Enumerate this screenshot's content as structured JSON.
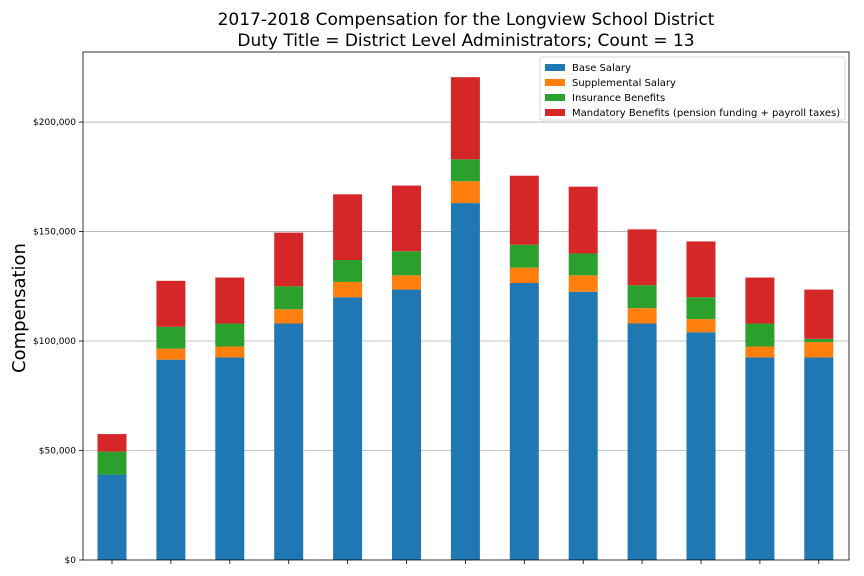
{
  "chart_data": {
    "type": "bar",
    "stacked": true,
    "title": [
      "2017-2018 Compensation for the Longview School District",
      "Duty Title = District Level Administrators; Count = 13"
    ],
    "xlabel": "",
    "ylabel": "Compensation",
    "ylim": [
      0,
      232000
    ],
    "yticks": [
      0,
      50000,
      100000,
      150000,
      200000
    ],
    "ytick_labels": [
      "$0",
      "$50,000",
      "$100,000",
      "$150,000",
      "$200,000"
    ],
    "grid": "horizontal",
    "legend_position": "top-right",
    "categories": [
      "",
      "",
      "",
      "",
      "",
      "",
      "",
      "",
      "",
      "",
      "",
      "",
      ""
    ],
    "series": [
      {
        "name": "Base Salary",
        "color": "#1f77b4",
        "values": [
          39000,
          91500,
          92500,
          108000,
          120000,
          123500,
          163000,
          126500,
          122500,
          108000,
          104000,
          92500,
          92500
        ]
      },
      {
        "name": "Supplemental Salary",
        "color": "#ff7f0e",
        "values": [
          0,
          5000,
          5000,
          6500,
          7000,
          6500,
          10000,
          7000,
          7500,
          7000,
          6000,
          5000,
          7000
        ]
      },
      {
        "name": "Insurance Benefits",
        "color": "#2ca02c",
        "values": [
          10500,
          10000,
          10500,
          10500,
          10000,
          11000,
          10000,
          10500,
          10000,
          10500,
          10000,
          10500,
          1500
        ]
      },
      {
        "name": "Mandatory Benefits (pension funding + payroll taxes)",
        "color": "#d62728",
        "values": [
          8000,
          21000,
          21000,
          24500,
          30000,
          30000,
          37500,
          31500,
          30500,
          25500,
          25500,
          21000,
          22500
        ]
      }
    ]
  }
}
